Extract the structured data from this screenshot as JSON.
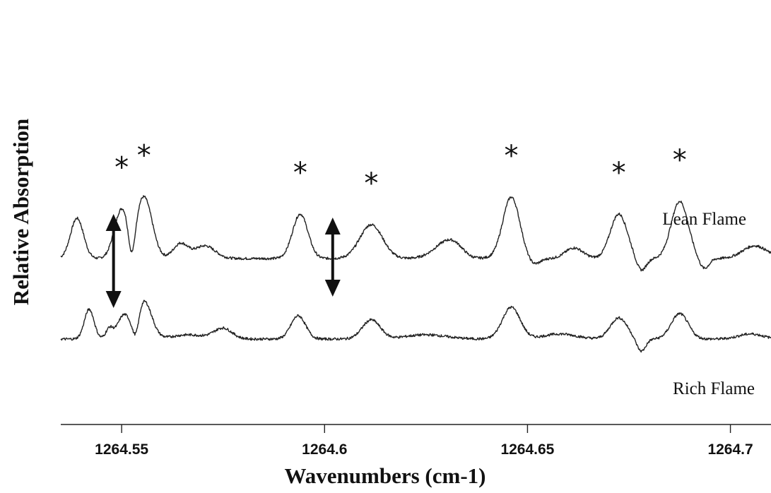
{
  "chart_data": {
    "type": "line",
    "title": "",
    "xlabel": "Wavenumbers (cm-1)",
    "ylabel": "Relative Absorption",
    "xlim": [
      1264.535,
      1264.71
    ],
    "x_ticks": [
      1264.55,
      1264.6,
      1264.65,
      1264.7
    ],
    "x_tick_labels": [
      "1264.55",
      "1264.6",
      "1264.65",
      "1264.7"
    ],
    "y_ticks_shown": false,
    "grid": false,
    "series": [
      {
        "name": "Lean Flame",
        "offset": 1.9,
        "peaks": [
          [
            1264.539,
            0.95,
            0.0016
          ],
          [
            1264.55,
            1.15,
            0.0018
          ],
          [
            1264.5555,
            1.45,
            0.002
          ],
          [
            1264.5525,
            -0.75,
            0.0008
          ],
          [
            1264.5645,
            0.35,
            0.0018
          ],
          [
            1264.5705,
            0.3,
            0.0025
          ],
          [
            1264.594,
            1.05,
            0.0019
          ],
          [
            1264.6115,
            0.8,
            0.0028
          ],
          [
            1264.631,
            0.45,
            0.0035
          ],
          [
            1264.6355,
            -0.1,
            0.002
          ],
          [
            1264.646,
            1.45,
            0.0021
          ],
          [
            1264.6515,
            -0.15,
            0.0015
          ],
          [
            1264.6615,
            0.25,
            0.0022
          ],
          [
            1264.6725,
            1.05,
            0.0021
          ],
          [
            1264.678,
            -0.3,
            0.0012
          ],
          [
            1264.6875,
            1.35,
            0.0021
          ],
          [
            1264.6935,
            -0.25,
            0.0012
          ],
          [
            1264.706,
            0.3,
            0.003
          ]
        ]
      },
      {
        "name": "Rich Flame",
        "offset": 0,
        "peaks": [
          [
            1264.542,
            0.7,
            0.0012
          ],
          [
            1264.547,
            0.25,
            0.0009
          ],
          [
            1264.5505,
            0.55,
            0.0015
          ],
          [
            1264.5555,
            0.9,
            0.0019
          ],
          [
            1264.5535,
            -0.45,
            0.0008
          ],
          [
            1264.5665,
            0.1,
            0.004
          ],
          [
            1264.575,
            0.25,
            0.0022
          ],
          [
            1264.5935,
            0.55,
            0.0018
          ],
          [
            1264.6115,
            0.45,
            0.0022
          ],
          [
            1264.625,
            0.1,
            0.005
          ],
          [
            1264.646,
            0.75,
            0.0022
          ],
          [
            1264.658,
            0.12,
            0.004
          ],
          [
            1264.6725,
            0.5,
            0.0021
          ],
          [
            1264.678,
            -0.3,
            0.0011
          ],
          [
            1264.6875,
            0.6,
            0.0021
          ],
          [
            1264.705,
            0.12,
            0.003
          ]
        ]
      }
    ],
    "star_marks_x": [
      1264.55,
      1264.5555,
      1264.594,
      1264.6115,
      1264.646,
      1264.6725,
      1264.6875
    ],
    "star_symbol": "*",
    "double_arrows_x": [
      1264.548,
      1264.602
    ]
  }
}
